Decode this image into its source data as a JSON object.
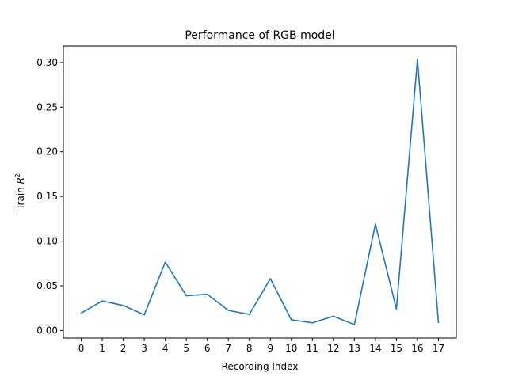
{
  "chart_data": {
    "type": "line",
    "title": "Performance of RGB model",
    "xlabel": "Recording Index",
    "ylabel_prefix": "Train ",
    "ylabel_var": "R",
    "ylabel_sup": "2",
    "x": [
      0,
      1,
      2,
      3,
      4,
      5,
      6,
      7,
      8,
      9,
      10,
      11,
      12,
      13,
      14,
      15,
      16,
      17
    ],
    "series": [
      {
        "values": [
          0.0195,
          0.033,
          0.028,
          0.0175,
          0.0765,
          0.039,
          0.0405,
          0.0225,
          0.018,
          0.058,
          0.012,
          0.0085,
          0.016,
          0.0065,
          0.119,
          0.024,
          0.3035,
          0.009
        ],
        "color": "#1f77b4"
      }
    ],
    "xlim": [
      -0.85,
      17.85
    ],
    "ylim": [
      -0.0085,
      0.3185
    ],
    "xticks": [
      "0",
      "1",
      "2",
      "3",
      "4",
      "5",
      "6",
      "7",
      "8",
      "9",
      "10",
      "11",
      "12",
      "13",
      "14",
      "15",
      "16",
      "17"
    ],
    "yticks": [
      "0.00",
      "0.05",
      "0.10",
      "0.15",
      "0.20",
      "0.25",
      "0.30"
    ],
    "grid": false,
    "legend": "none"
  }
}
